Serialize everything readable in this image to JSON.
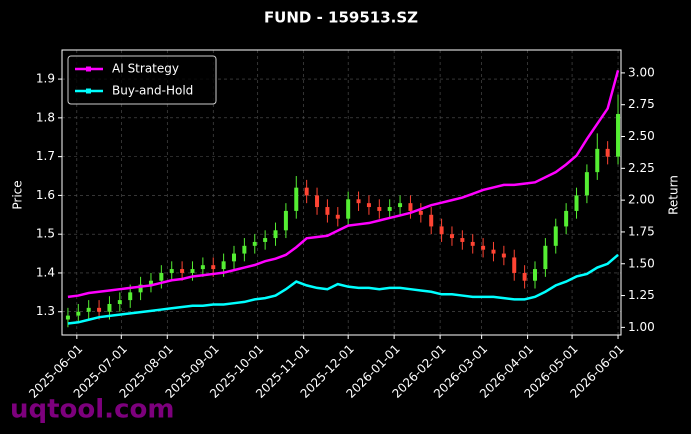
{
  "chart_data": {
    "type": "candlestick",
    "title": "FUND - 159513.SZ",
    "ylabel": "Price",
    "y2label": "Return",
    "watermark": "uqtool.com",
    "x": [
      "2025-05-26",
      "2025-06-02",
      "2025-06-09",
      "2025-06-16",
      "2025-06-23",
      "2025-06-30",
      "2025-07-07",
      "2025-07-14",
      "2025-07-21",
      "2025-07-28",
      "2025-08-04",
      "2025-08-11",
      "2025-08-18",
      "2025-08-25",
      "2025-09-01",
      "2025-09-08",
      "2025-09-15",
      "2025-09-22",
      "2025-09-29",
      "2025-10-06",
      "2025-10-13",
      "2025-10-20",
      "2025-10-27",
      "2025-11-03",
      "2025-11-10",
      "2025-11-17",
      "2025-11-24",
      "2025-12-01",
      "2025-12-08",
      "2025-12-15",
      "2025-12-22",
      "2025-12-29",
      "2026-01-05",
      "2026-01-12",
      "2026-01-19",
      "2026-01-26",
      "2026-02-02",
      "2026-02-09",
      "2026-02-16",
      "2026-02-23",
      "2026-03-02",
      "2026-03-09",
      "2026-03-16",
      "2026-03-23",
      "2026-03-30",
      "2026-04-06",
      "2026-04-13",
      "2026-04-20",
      "2026-04-27",
      "2026-05-04",
      "2026-05-11",
      "2026-05-18",
      "2026-05-25",
      "2026-06-01"
    ],
    "open": [
      1.28,
      1.29,
      1.3,
      1.31,
      1.3,
      1.32,
      1.33,
      1.35,
      1.37,
      1.38,
      1.4,
      1.41,
      1.4,
      1.41,
      1.42,
      1.41,
      1.43,
      1.45,
      1.47,
      1.48,
      1.49,
      1.51,
      1.56,
      1.62,
      1.6,
      1.57,
      1.55,
      1.54,
      1.59,
      1.58,
      1.57,
      1.56,
      1.57,
      1.58,
      1.56,
      1.55,
      1.52,
      1.5,
      1.49,
      1.48,
      1.47,
      1.46,
      1.45,
      1.44,
      1.4,
      1.38,
      1.41,
      1.47,
      1.52,
      1.56,
      1.6,
      1.66,
      1.72,
      1.7
    ],
    "high": [
      1.31,
      1.32,
      1.33,
      1.33,
      1.34,
      1.35,
      1.37,
      1.39,
      1.4,
      1.42,
      1.43,
      1.43,
      1.43,
      1.44,
      1.44,
      1.45,
      1.47,
      1.49,
      1.5,
      1.51,
      1.53,
      1.58,
      1.65,
      1.64,
      1.62,
      1.59,
      1.57,
      1.61,
      1.61,
      1.6,
      1.59,
      1.59,
      1.6,
      1.6,
      1.58,
      1.57,
      1.54,
      1.52,
      1.51,
      1.5,
      1.49,
      1.48,
      1.47,
      1.46,
      1.42,
      1.43,
      1.49,
      1.54,
      1.58,
      1.62,
      1.68,
      1.76,
      1.74,
      1.86
    ],
    "low": [
      1.26,
      1.27,
      1.28,
      1.28,
      1.28,
      1.3,
      1.31,
      1.33,
      1.35,
      1.36,
      1.38,
      1.38,
      1.38,
      1.39,
      1.39,
      1.39,
      1.41,
      1.43,
      1.45,
      1.46,
      1.47,
      1.49,
      1.54,
      1.58,
      1.55,
      1.53,
      1.52,
      1.52,
      1.56,
      1.55,
      1.54,
      1.54,
      1.55,
      1.54,
      1.53,
      1.5,
      1.48,
      1.47,
      1.46,
      1.45,
      1.44,
      1.43,
      1.42,
      1.38,
      1.36,
      1.36,
      1.39,
      1.45,
      1.5,
      1.54,
      1.58,
      1.64,
      1.68,
      1.68
    ],
    "close": [
      1.29,
      1.3,
      1.31,
      1.3,
      1.32,
      1.33,
      1.35,
      1.37,
      1.38,
      1.4,
      1.41,
      1.4,
      1.41,
      1.42,
      1.41,
      1.43,
      1.45,
      1.47,
      1.48,
      1.49,
      1.51,
      1.56,
      1.62,
      1.6,
      1.57,
      1.55,
      1.54,
      1.59,
      1.58,
      1.57,
      1.56,
      1.57,
      1.58,
      1.56,
      1.55,
      1.52,
      1.5,
      1.49,
      1.48,
      1.47,
      1.46,
      1.45,
      1.44,
      1.4,
      1.38,
      1.41,
      1.47,
      1.52,
      1.56,
      1.6,
      1.66,
      1.72,
      1.7,
      1.81
    ],
    "up_color": "#55ee33",
    "down_color": "#ff4433",
    "series": [
      {
        "name": "AI Strategy",
        "color": "#ff00ff",
        "axis": "y2",
        "values": [
          1.24,
          1.25,
          1.27,
          1.28,
          1.29,
          1.3,
          1.31,
          1.32,
          1.33,
          1.35,
          1.37,
          1.38,
          1.4,
          1.41,
          1.42,
          1.43,
          1.45,
          1.47,
          1.49,
          1.52,
          1.54,
          1.57,
          1.63,
          1.7,
          1.71,
          1.72,
          1.76,
          1.8,
          1.81,
          1.82,
          1.84,
          1.86,
          1.88,
          1.9,
          1.93,
          1.96,
          1.98,
          2.0,
          2.02,
          2.05,
          2.08,
          2.1,
          2.12,
          2.12,
          2.13,
          2.14,
          2.18,
          2.22,
          2.28,
          2.35,
          2.48,
          2.6,
          2.72,
          3.02
        ]
      },
      {
        "name": "Buy-and-Hold",
        "color": "#00ffff",
        "axis": "y2",
        "values": [
          1.03,
          1.04,
          1.06,
          1.08,
          1.09,
          1.1,
          1.11,
          1.12,
          1.13,
          1.14,
          1.15,
          1.16,
          1.17,
          1.17,
          1.18,
          1.18,
          1.19,
          1.2,
          1.22,
          1.23,
          1.25,
          1.3,
          1.36,
          1.33,
          1.31,
          1.3,
          1.34,
          1.32,
          1.31,
          1.31,
          1.3,
          1.31,
          1.31,
          1.3,
          1.29,
          1.28,
          1.26,
          1.26,
          1.25,
          1.24,
          1.24,
          1.24,
          1.23,
          1.22,
          1.22,
          1.24,
          1.28,
          1.33,
          1.36,
          1.4,
          1.42,
          1.47,
          1.5,
          1.57
        ]
      }
    ],
    "xlim": [
      "2025-05-22",
      "2026-06-03"
    ],
    "xticks": [
      "2025-06-01",
      "2025-07-01",
      "2025-08-01",
      "2025-09-01",
      "2025-10-01",
      "2025-11-01",
      "2025-12-01",
      "2026-01-01",
      "2026-02-01",
      "2026-03-01",
      "2026-04-01",
      "2026-05-01",
      "2026-06-01"
    ],
    "ylim": [
      1.24,
      1.975
    ],
    "yticks": [
      1.3,
      1.4,
      1.5,
      1.6,
      1.7,
      1.8,
      1.9
    ],
    "y2lim": [
      0.94,
      3.18
    ],
    "y2ticks": [
      {
        "value": 1,
        "label": "1.00"
      },
      {
        "value": 1.25,
        "label": "1.25"
      },
      {
        "value": 1.5,
        "label": "1.50"
      },
      {
        "value": 1.75,
        "label": "1.75"
      },
      {
        "value": 2,
        "label": "2.00"
      },
      {
        "value": 2.25,
        "label": "2.25"
      },
      {
        "value": 2.5,
        "label": "2.50"
      },
      {
        "value": 2.75,
        "label": "2.75"
      },
      {
        "value": 3,
        "label": "3.00"
      }
    ],
    "grid": true,
    "legend": "upper left"
  }
}
